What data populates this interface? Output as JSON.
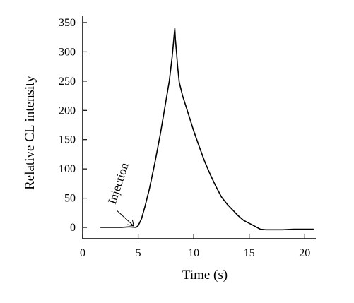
{
  "chart_data": {
    "type": "line",
    "xlabel": "Time (s)",
    "ylabel": "Relative CL intensity",
    "xlim": [
      0,
      21
    ],
    "ylim": [
      -10,
      350
    ],
    "xticks": [
      0,
      5,
      10,
      15,
      20
    ],
    "yticks": [
      0,
      50,
      100,
      150,
      200,
      250,
      300,
      350
    ],
    "grid": false,
    "series": [
      {
        "x": [
          1.6,
          2.5,
          3.5,
          4.2,
          4.8,
          5.0,
          5.3,
          5.6,
          6.0,
          6.5,
          7.0,
          7.4,
          7.8,
          8.05,
          8.15,
          8.25,
          8.3,
          8.35,
          8.45,
          8.55,
          8.7,
          9.0,
          9.5,
          10.0,
          10.5,
          11.0,
          11.5,
          12.0,
          12.5,
          13.0,
          13.5,
          14.0,
          14.5,
          15.0,
          15.5,
          16.0,
          16.5,
          17.0,
          18.0,
          19.0,
          20.0,
          20.8
        ],
        "y": [
          0,
          0,
          0,
          1,
          0,
          3,
          15,
          35,
          65,
          110,
          160,
          205,
          250,
          290,
          310,
          330,
          340,
          322,
          300,
          275,
          248,
          225,
          195,
          165,
          138,
          112,
          90,
          70,
          52,
          40,
          30,
          20,
          12,
          7,
          2,
          -3,
          -4,
          -4,
          -4,
          -3,
          -3,
          -3
        ]
      }
    ],
    "annotations": [
      {
        "text": "Injection",
        "x": 4.6,
        "y": 0
      }
    ]
  }
}
